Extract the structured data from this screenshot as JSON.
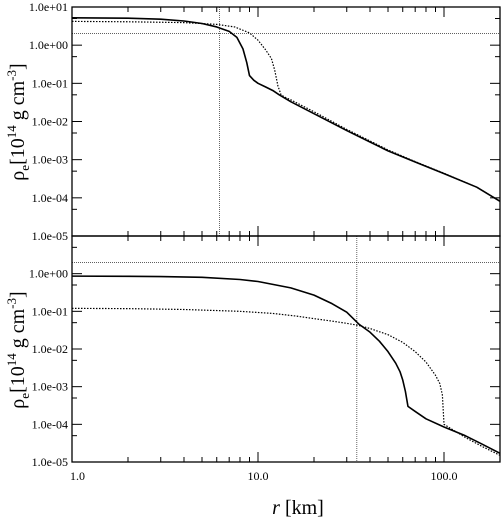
{
  "chart_data": [
    {
      "type": "line",
      "panel": "top",
      "title": "",
      "ylabel_parts": {
        "rho": "ρ",
        "sub": "e",
        "pre": "[10",
        "exp1": "14",
        "mid": " g cm",
        "exp2": "-3",
        "post": "]"
      },
      "xlabel": "",
      "xscale": "log",
      "yscale": "log",
      "xlim": [
        1.0,
        200.0
      ],
      "ylim": [
        1e-05,
        10
      ],
      "yticks": [
        "1.0e-05",
        "1.0e-04",
        "1.0e-03",
        "1.0e-02",
        "1.0e-01",
        "1.0e+00",
        "1.0e+01"
      ],
      "series": [
        {
          "style": "solid",
          "points": [
            [
              1.0,
              5.2
            ],
            [
              2.0,
              5.1
            ],
            [
              3.0,
              4.8
            ],
            [
              4.0,
              4.3
            ],
            [
              5.0,
              3.7
            ],
            [
              6.0,
              3.0
            ],
            [
              7.0,
              2.3
            ],
            [
              7.7,
              1.6
            ],
            [
              8.3,
              0.8
            ],
            [
              8.7,
              0.35
            ],
            [
              9.0,
              0.16
            ],
            [
              9.5,
              0.12
            ],
            [
              10.0,
              0.1
            ],
            [
              11.0,
              0.08
            ],
            [
              12.0,
              0.065
            ],
            [
              13.0,
              0.05
            ],
            [
              15.0,
              0.033
            ],
            [
              20.0,
              0.016
            ],
            [
              30.0,
              0.0058
            ],
            [
              40.0,
              0.0029
            ],
            [
              50.0,
              0.0017
            ],
            [
              70.0,
              0.00087
            ],
            [
              100.0,
              0.00043
            ],
            [
              150.0,
              0.00019
            ],
            [
              200.0,
              8.1e-05
            ]
          ]
        },
        {
          "style": "dotted",
          "points": [
            [
              1.0,
              4.2
            ],
            [
              2.0,
              4.1
            ],
            [
              4.0,
              3.9
            ],
            [
              6.0,
              3.5
            ],
            [
              7.5,
              3.0
            ],
            [
              9.0,
              2.1
            ],
            [
              10.0,
              1.35
            ],
            [
              11.0,
              0.75
            ],
            [
              11.8,
              0.45
            ],
            [
              12.3,
              0.22
            ],
            [
              12.8,
              0.085
            ],
            [
              13.3,
              0.05
            ],
            [
              14.0,
              0.043
            ],
            [
              15.0,
              0.037
            ],
            [
              20.0,
              0.018
            ],
            [
              30.0,
              0.0062
            ],
            [
              40.0,
              0.0031
            ],
            [
              50.0,
              0.0018
            ],
            [
              70.0,
              0.00089
            ],
            [
              100.0,
              0.00044
            ],
            [
              150.0,
              0.00019
            ],
            [
              200.0,
              8.2e-05
            ]
          ]
        }
      ],
      "hline": 2.0,
      "vline": 6.2
    },
    {
      "type": "line",
      "panel": "bottom",
      "title": "",
      "ylabel_parts": {
        "rho": "ρ",
        "sub": "e",
        "pre": "[10",
        "exp1": "14",
        "mid": " g cm",
        "exp2": "-3",
        "post": "]"
      },
      "xlabel_parts": {
        "var": "r",
        "unit": " [km]"
      },
      "xscale": "log",
      "yscale": "log",
      "xlim": [
        1.0,
        200.0
      ],
      "ylim": [
        1e-05,
        10
      ],
      "xticks": [
        "1.0",
        "10.0",
        "100.0"
      ],
      "xtick_values": [
        1.0,
        10.0,
        100.0
      ],
      "yticks": [
        "1.0e-05",
        "1.0e-04",
        "1.0e-03",
        "1.0e-02",
        "1.0e-01",
        "1.0e+00"
      ],
      "series": [
        {
          "style": "solid",
          "points": [
            [
              1.0,
              0.86
            ],
            [
              2.0,
              0.85
            ],
            [
              3.0,
              0.84
            ],
            [
              5.0,
              0.8
            ],
            [
              8.0,
              0.7
            ],
            [
              10.0,
              0.62
            ],
            [
              15.0,
              0.42
            ],
            [
              20.0,
              0.27
            ],
            [
              25.0,
              0.16
            ],
            [
              30.0,
              0.095
            ],
            [
              35.0,
              0.045
            ],
            [
              40.0,
              0.028
            ],
            [
              45.0,
              0.016
            ],
            [
              50.0,
              0.0085
            ],
            [
              55.0,
              0.0042
            ],
            [
              58.0,
              0.0025
            ],
            [
              60.0,
              0.0015
            ],
            [
              62.0,
              0.00075
            ],
            [
              64.0,
              0.0003
            ],
            [
              70.0,
              0.00022
            ],
            [
              80.0,
              0.00014
            ],
            [
              100.0,
              8.5e-05
            ],
            [
              130.0,
              5e-05
            ],
            [
              160.0,
              3e-05
            ],
            [
              200.0,
              1.7e-05
            ]
          ]
        },
        {
          "style": "dotted",
          "points": [
            [
              1.0,
              0.12
            ],
            [
              2.0,
              0.118
            ],
            [
              4.0,
              0.112
            ],
            [
              8.0,
              0.1
            ],
            [
              12.0,
              0.088
            ],
            [
              16.0,
              0.075
            ],
            [
              20.0,
              0.064
            ],
            [
              25.0,
              0.055
            ],
            [
              30.0,
              0.048
            ],
            [
              35.0,
              0.042
            ],
            [
              40.0,
              0.035
            ],
            [
              50.0,
              0.024
            ],
            [
              60.0,
              0.015
            ],
            [
              70.0,
              0.0085
            ],
            [
              80.0,
              0.0045
            ],
            [
              90.0,
              0.002
            ],
            [
              95.0,
              0.0012
            ],
            [
              98.0,
              0.0006
            ],
            [
              100.0,
              0.0001
            ],
            [
              130.0,
              4.5e-05
            ],
            [
              160.0,
              2.6e-05
            ],
            [
              200.0,
              1.5e-05
            ]
          ]
        }
      ],
      "hline": 2.0,
      "vline": 34.0
    }
  ]
}
